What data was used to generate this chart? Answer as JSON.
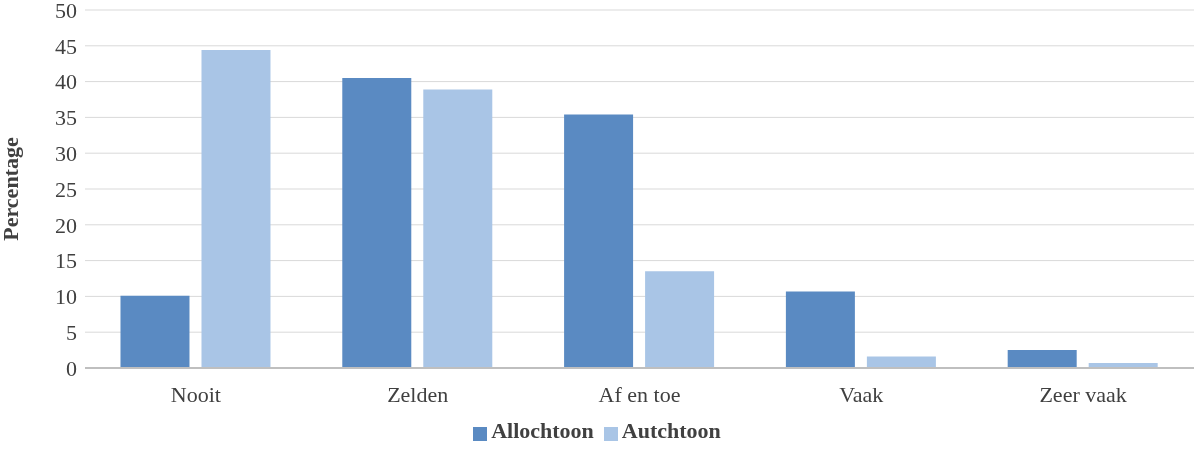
{
  "chart_data": {
    "type": "bar",
    "ylabel": "Percentage",
    "categories": [
      "Nooit",
      "Zelden",
      "Af en toe",
      "Vaak",
      "Zeer vaak"
    ],
    "series": [
      {
        "name": "Allochtoon",
        "color": "#5a8ac2",
        "values": [
          10.1,
          40.5,
          35.4,
          10.7,
          2.5
        ]
      },
      {
        "name": "Autchtoon",
        "color": "#a9c5e6",
        "values": [
          44.4,
          38.9,
          13.5,
          1.6,
          0.7
        ]
      }
    ],
    "ylim": [
      0,
      50
    ],
    "yticks": [
      0,
      5,
      10,
      15,
      20,
      25,
      30,
      35,
      40,
      45,
      50
    ],
    "grid": "y",
    "legend": "bottom"
  }
}
